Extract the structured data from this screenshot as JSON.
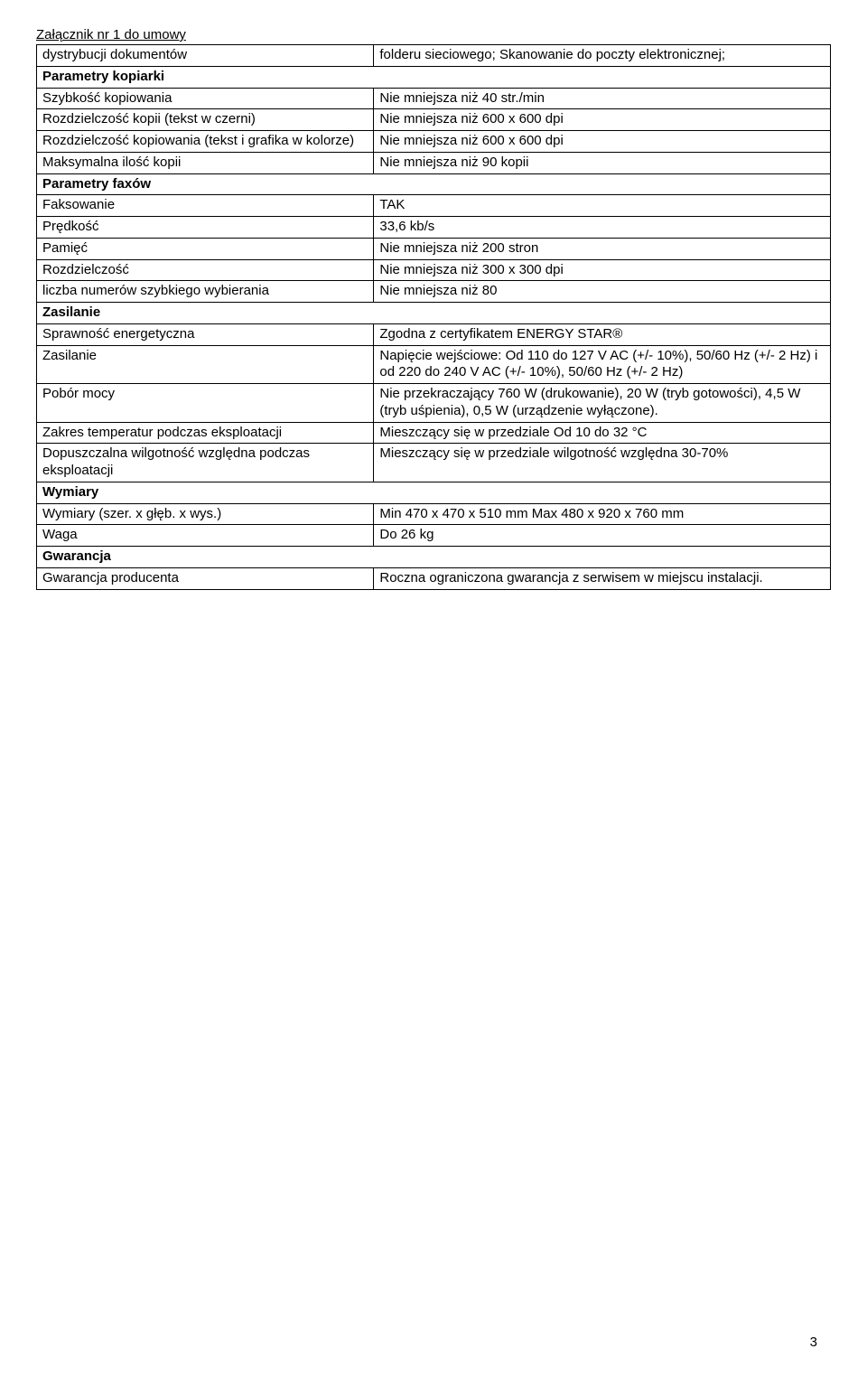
{
  "header": "Załącznik nr 1 do umowy",
  "rows": [
    {
      "l": "dystrybucji dokumentów",
      "r": "folderu sieciowego; Skanowanie do poczty elektronicznej;",
      "section": false
    },
    {
      "l": "Parametry kopiarki",
      "r": null,
      "section": true
    },
    {
      "l": "Szybkość kopiowania",
      "r": "Nie mniejsza niż 40 str./min",
      "section": false
    },
    {
      "l": "Rozdzielczość kopii (tekst w czerni)",
      "r": "Nie mniejsza niż 600 x 600 dpi",
      "section": false
    },
    {
      "l": "Rozdzielczość kopiowania (tekst i grafika w kolorze)",
      "r": "Nie mniejsza niż 600 x 600 dpi",
      "section": false
    },
    {
      "l": "Maksymalna ilość kopii",
      "r": "Nie mniejsza niż 90 kopii",
      "section": false
    },
    {
      "l": "Parametry faxów",
      "r": null,
      "section": true
    },
    {
      "l": "Faksowanie",
      "r": " TAK",
      "section": false
    },
    {
      "l": "Prędkość",
      "r": "33,6 kb/s",
      "section": false
    },
    {
      "l": "Pamięć",
      "r": "Nie mniejsza niż 200 stron",
      "section": false
    },
    {
      "l": "Rozdzielczość",
      "r": "Nie mniejsza niż 300 x 300 dpi",
      "section": false
    },
    {
      "l": "liczba numerów szybkiego wybierania",
      "r": "Nie mniejsza niż 80",
      "section": false
    },
    {
      "l": "Zasilanie",
      "r": null,
      "section": true
    },
    {
      "l": "Sprawność energetyczna",
      "r": "Zgodna z certyfikatem ENERGY STAR®",
      "section": false
    },
    {
      "l": "Zasilanie",
      "r": "Napięcie wejściowe: Od 110 do 127 V AC (+/- 10%), 50/60 Hz (+/- 2 Hz) i od 220 do 240 V AC (+/- 10%), 50/60 Hz (+/- 2 Hz)",
      "section": false
    },
    {
      "l": "Pobór mocy",
      "r": "Nie przekraczający 760 W (drukowanie), 20 W (tryb gotowości), 4,5 W (tryb uśpienia), 0,5 W (urządzenie wyłączone).",
      "section": false
    },
    {
      "l": "Zakres temperatur podczas eksploatacji",
      "r": "Mieszczący się w przedziale Od 10 do 32 °C",
      "section": false
    },
    {
      "l": "Dopuszczalna wilgotność względna podczas eksploatacji",
      "r": "Mieszczący się w przedziale wilgotność względna  30-70%",
      "section": false
    },
    {
      "l": "Wymiary",
      "r": null,
      "section": true
    },
    {
      "l": "Wymiary (szer. x głęb. x wys.)",
      "r": "Min 470 x 470 x 510 mm Max 480 x 920 x 760 mm",
      "section": false
    },
    {
      "l": "Waga",
      "r": "Do 26 kg",
      "section": false
    },
    {
      "l": "Gwarancja",
      "r": null,
      "section": true
    },
    {
      "l": "Gwarancja producenta",
      "r": "Roczna ograniczona gwarancja z serwisem w miejscu instalacji.",
      "section": false
    }
  ],
  "page_number": "3",
  "style": {
    "background_color": "#ffffff",
    "text_color": "#000000",
    "border_color": "#000000",
    "font_family": "Arial",
    "base_font_size": 15,
    "col_left_width_pct": 41
  }
}
